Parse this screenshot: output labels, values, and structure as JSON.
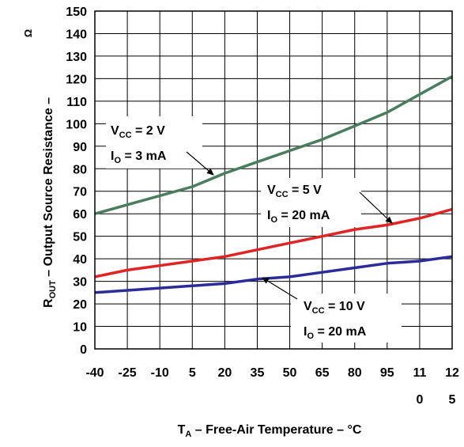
{
  "chart_data": {
    "type": "line",
    "xlabel": {
      "main": "T",
      "sub": "A",
      "rest": " – Free-Air Temperature – °C"
    },
    "ylabel": {
      "main": "R",
      "sub": "OUT",
      "rest": " – Output Source Resistance –",
      "unit": "Ω"
    },
    "x": [
      -40,
      -25,
      -10,
      5,
      20,
      35,
      50,
      65,
      80,
      95,
      110,
      125
    ],
    "xtick_labels": [
      {
        "top": "-40",
        "bottom": ""
      },
      {
        "top": "-25",
        "bottom": ""
      },
      {
        "top": "-10",
        "bottom": ""
      },
      {
        "top": "5",
        "bottom": ""
      },
      {
        "top": "20",
        "bottom": ""
      },
      {
        "top": "35",
        "bottom": ""
      },
      {
        "top": "50",
        "bottom": ""
      },
      {
        "top": "65",
        "bottom": ""
      },
      {
        "top": "80",
        "bottom": ""
      },
      {
        "top": "95",
        "bottom": ""
      },
      {
        "top": "11",
        "bottom": "0"
      },
      {
        "top": "12",
        "bottom": "5"
      }
    ],
    "xlim": [
      -40,
      125
    ],
    "ylim": [
      0,
      150
    ],
    "yticks": [
      0,
      10,
      20,
      30,
      40,
      50,
      60,
      70,
      80,
      90,
      100,
      110,
      120,
      130,
      140,
      150
    ],
    "grid": true,
    "series": [
      {
        "color": "#4a7d5e",
        "values": [
          60,
          64,
          68,
          72,
          78,
          83,
          88,
          93,
          99,
          105,
          113,
          121
        ],
        "label": {
          "vcc": "= 2 V",
          "io": "= 3 mA"
        }
      },
      {
        "color": "#e02424",
        "values": [
          32,
          35,
          37,
          39,
          41,
          44,
          47,
          50,
          53,
          55,
          58,
          62
        ],
        "label": {
          "vcc": "= 5 V",
          "io": "= 20 mA"
        }
      },
      {
        "color": "#2a2c9a",
        "values": [
          25,
          26,
          27,
          28,
          29,
          31,
          32,
          34,
          36,
          38,
          39,
          41
        ],
        "label": {
          "vcc": "= 10 V",
          "io": "= 20 mA"
        }
      }
    ]
  }
}
